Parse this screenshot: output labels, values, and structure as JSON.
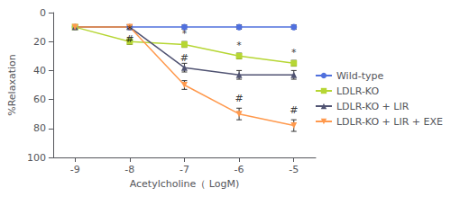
{
  "chart_data": {
    "type": "line",
    "x": [
      -9,
      -8,
      -7,
      -6,
      -5
    ],
    "series": [
      {
        "name": "Wild-type",
        "values": [
          10,
          10,
          10,
          10,
          10
        ],
        "yerr": [
          1.5,
          1.5,
          1.5,
          1.5,
          1.5
        ],
        "marker": "circle"
      },
      {
        "name": "LDLR-KO",
        "values": [
          10,
          20,
          22,
          30,
          35
        ],
        "yerr": [
          1.5,
          2,
          2,
          2,
          2
        ],
        "marker": "square"
      },
      {
        "name": "LDLR-KO + LIR",
        "values": [
          10,
          10,
          38,
          43,
          43
        ],
        "yerr": [
          1.5,
          1.5,
          3,
          3,
          3
        ],
        "marker": "triangle-up"
      },
      {
        "name": "LDLR-KO + LIR + EXE",
        "values": [
          10,
          10,
          50,
          70,
          78
        ],
        "yerr": [
          1.5,
          1.5,
          3,
          4,
          4
        ],
        "marker": "triangle-down"
      }
    ],
    "xlabel": "Acetylcholine（ LogM)",
    "ylabel": "%Relaxation",
    "xlim": [
      -9.4,
      -4.6
    ],
    "xticks": [
      -9,
      -8,
      -7,
      -6,
      -5
    ],
    "ylim": [
      100,
      0
    ],
    "yticks": [
      0,
      20,
      40,
      60,
      80,
      100
    ],
    "annotations": [
      {
        "x": -8,
        "y": 15,
        "text": "*"
      },
      {
        "x": -7,
        "y": 18,
        "text": "*"
      },
      {
        "x": -6,
        "y": 26,
        "text": "*"
      },
      {
        "x": -5,
        "y": 31,
        "text": "*"
      },
      {
        "x": -8,
        "y": 22,
        "text": "#"
      },
      {
        "x": -7,
        "y": 35,
        "text": "#"
      },
      {
        "x": -6,
        "y": 63,
        "text": "#"
      },
      {
        "x": -5,
        "y": 71,
        "text": "#"
      }
    ],
    "grid": false,
    "legend": "right"
  }
}
